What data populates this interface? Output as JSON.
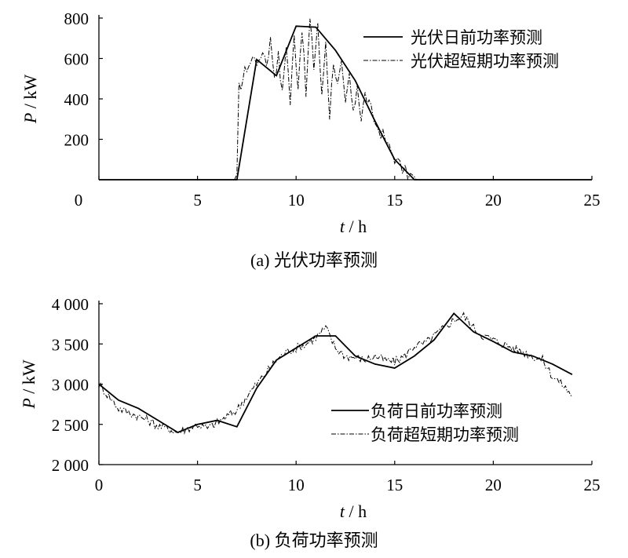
{
  "chart_data": [
    {
      "type": "line",
      "caption": "(a)  光伏功率预测",
      "xlabel_var": "t",
      "xlabel_unit": " / h",
      "ylabel_var": "P",
      "ylabel_unit": " / kW",
      "xlim": [
        0,
        25
      ],
      "ylim": [
        0,
        800
      ],
      "xticks": [
        0,
        5,
        10,
        15,
        20,
        25
      ],
      "xtick_labels": [
        "0",
        "5",
        "10",
        "15",
        "20",
        "25"
      ],
      "yticks": [
        200,
        400,
        600,
        800
      ],
      "ytick_labels": [
        "200",
        "400",
        "600",
        "800"
      ],
      "grid": false,
      "legend_position": "top-right",
      "series": [
        {
          "name": "光伏日前功率预测",
          "style": "solid",
          "x": [
            0,
            7,
            8,
            9,
            10,
            11,
            12,
            13,
            14,
            15,
            16,
            25
          ],
          "y": [
            0,
            0,
            595,
            515,
            760,
            755,
            640,
            490,
            290,
            100,
            0,
            0
          ]
        },
        {
          "name": "光伏超短期功率预测",
          "style": "dashdot",
          "x": [
            0,
            7.0,
            7.1,
            7.3,
            7.5,
            7.7,
            7.9,
            8.1,
            8.3,
            8.5,
            8.7,
            8.9,
            9.1,
            9.3,
            9.5,
            9.7,
            9.9,
            10.1,
            10.3,
            10.5,
            10.7,
            10.9,
            11.1,
            11.3,
            11.5,
            11.7,
            11.9,
            12.1,
            12.3,
            12.5,
            12.7,
            12.9,
            13.1,
            13.3,
            13.5,
            13.8,
            14.1,
            14.4,
            14.7,
            15.0,
            15.4,
            15.8,
            16.1,
            25
          ],
          "y": [
            0,
            0,
            450,
            500,
            560,
            580,
            620,
            560,
            650,
            580,
            690,
            520,
            610,
            420,
            680,
            380,
            710,
            470,
            760,
            420,
            790,
            560,
            780,
            400,
            690,
            320,
            600,
            460,
            560,
            360,
            520,
            310,
            480,
            300,
            420,
            340,
            260,
            220,
            160,
            110,
            50,
            20,
            0,
            0
          ]
        }
      ]
    },
    {
      "type": "line",
      "caption": "(b)  负荷功率预测",
      "xlabel_var": "t",
      "xlabel_unit": " / h",
      "ylabel_var": "P",
      "ylabel_unit": " / kW",
      "xlim": [
        0,
        25
      ],
      "ylim": [
        2000,
        4000
      ],
      "xticks": [
        0,
        5,
        10,
        15,
        20,
        25
      ],
      "xtick_labels": [
        "0",
        "5",
        "10",
        "15",
        "20",
        "25"
      ],
      "yticks": [
        2000,
        2500,
        3000,
        3500,
        4000
      ],
      "ytick_labels": [
        "2 000",
        "2 500",
        "3 000",
        "3 500",
        "4 000"
      ],
      "grid": false,
      "legend_position": "bottom-right",
      "series": [
        {
          "name": "负荷日前功率预测",
          "style": "solid",
          "x": [
            0,
            1,
            2,
            3,
            4,
            5,
            6,
            7,
            8,
            9,
            10,
            11,
            12,
            13,
            14,
            15,
            16,
            17,
            18,
            19,
            20,
            21,
            22,
            23,
            24
          ],
          "y": [
            3000,
            2800,
            2700,
            2550,
            2400,
            2500,
            2550,
            2470,
            2950,
            3300,
            3450,
            3600,
            3600,
            3350,
            3250,
            3200,
            3350,
            3550,
            3880,
            3650,
            3530,
            3400,
            3350,
            3250,
            3120
          ]
        },
        {
          "name": "负荷超短期功率预测",
          "style": "dashdot",
          "x": [
            0,
            0.5,
            1,
            1.5,
            2,
            2.5,
            3,
            3.5,
            4,
            4.5,
            5,
            5.5,
            6,
            6.5,
            7,
            7.5,
            8,
            8.5,
            9,
            9.5,
            10,
            10.5,
            11,
            11.5,
            12,
            12.5,
            13,
            13.5,
            14,
            14.5,
            15,
            15.5,
            16,
            16.5,
            17,
            17.5,
            18,
            18.5,
            19,
            19.5,
            20,
            20.5,
            21,
            21.5,
            22,
            22.5,
            23,
            23.5,
            24
          ],
          "y": [
            3000,
            2850,
            2700,
            2650,
            2600,
            2550,
            2480,
            2450,
            2400,
            2450,
            2500,
            2450,
            2520,
            2600,
            2680,
            2850,
            3000,
            3150,
            3300,
            3400,
            3450,
            3500,
            3580,
            3700,
            3450,
            3350,
            3330,
            3300,
            3350,
            3300,
            3280,
            3350,
            3480,
            3500,
            3600,
            3700,
            3800,
            3850,
            3700,
            3600,
            3550,
            3500,
            3450,
            3400,
            3350,
            3300,
            3100,
            3000,
            2850
          ]
        }
      ]
    }
  ]
}
